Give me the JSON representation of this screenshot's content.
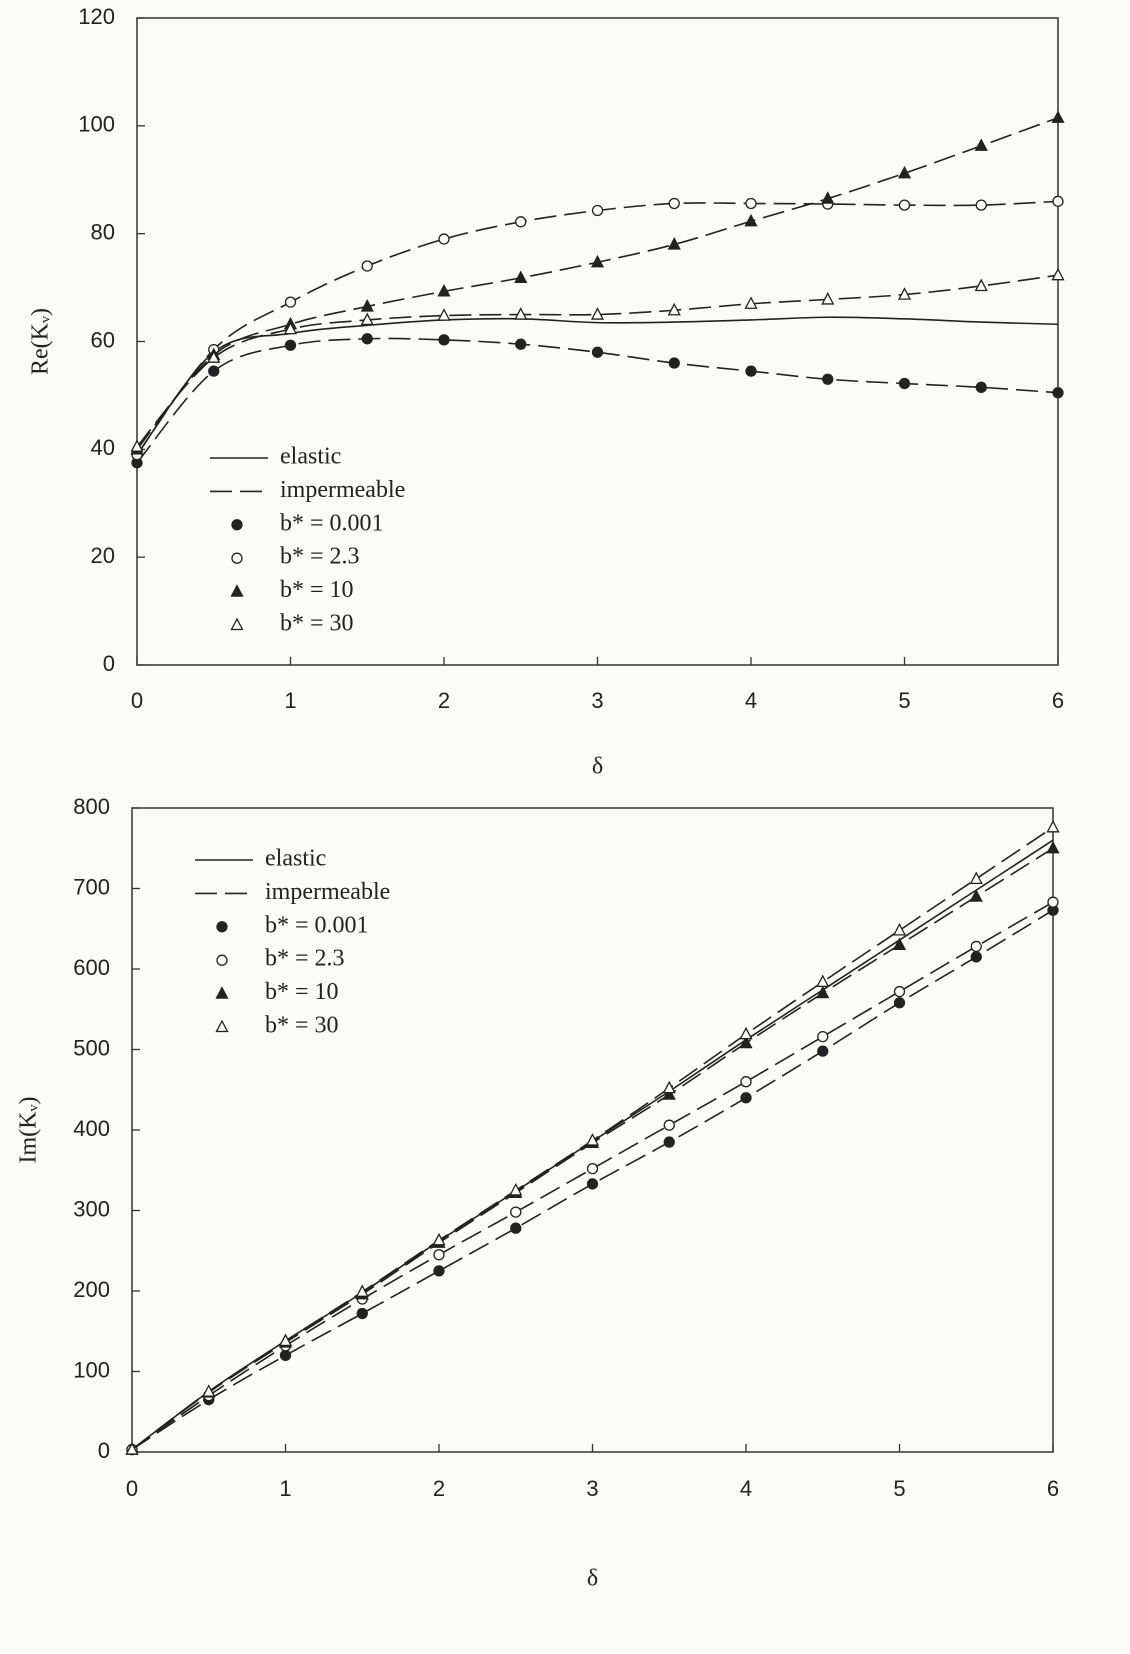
{
  "chart_data": [
    {
      "type": "line",
      "x_label": "δ",
      "y_label": "Re(Kᵥ)",
      "x": [
        0,
        0.5,
        1,
        1.5,
        2,
        2.5,
        3,
        3.5,
        4,
        4.5,
        5,
        5.5,
        6
      ],
      "xlim": [
        0,
        6
      ],
      "xticks": [
        0,
        1,
        2,
        3,
        4,
        5,
        6
      ],
      "ylim": [
        0,
        120
      ],
      "yticks": [
        0,
        20,
        40,
        60,
        80,
        100,
        120
      ],
      "dashed_label": "impermeable",
      "series": [
        {
          "name": "elastic",
          "color": "#222222",
          "dash": "solid",
          "marker": "none",
          "values": [
            39,
            58,
            61.5,
            63,
            64,
            64.2,
            63.5,
            63.6,
            64,
            64.5,
            64.2,
            63.6,
            63.2
          ]
        },
        {
          "name": "b* = 0.001",
          "color": "#222222",
          "dash": "dashed",
          "marker": "filled-circle",
          "values": [
            37.5,
            54.5,
            59.3,
            60.5,
            60.3,
            59.5,
            58,
            56,
            54.5,
            53,
            52.2,
            51.5,
            50.5
          ]
        },
        {
          "name": "b* = 2.3",
          "color": "#222222",
          "dash": "dashed",
          "marker": "open-circle",
          "values": [
            39,
            58.5,
            67.3,
            74,
            79,
            82.2,
            84.3,
            85.6,
            85.6,
            85.5,
            85.3,
            85.3,
            86
          ]
        },
        {
          "name": "b* = 10",
          "color": "#222222",
          "dash": "dashed",
          "marker": "filled-triangle",
          "values": [
            40,
            57.5,
            63.2,
            66.5,
            69.3,
            71.8,
            74.7,
            78,
            82.3,
            86.5,
            91.2,
            96.3,
            101.5
          ]
        },
        {
          "name": "b* = 30",
          "color": "#222222",
          "dash": "dashed",
          "marker": "open-triangle",
          "values": [
            40.5,
            57,
            62.3,
            64,
            64.8,
            65,
            65,
            65.8,
            67,
            67.8,
            68.7,
            70.3,
            72.3
          ]
        }
      ]
    },
    {
      "type": "line",
      "x_label": "δ",
      "y_label": "Im(Kᵥ)",
      "x": [
        0,
        0.5,
        1,
        1.5,
        2,
        2.5,
        3,
        3.5,
        4,
        4.5,
        5,
        5.5,
        6
      ],
      "xlim": [
        0,
        6
      ],
      "xticks": [
        0,
        1,
        2,
        3,
        4,
        5,
        6
      ],
      "ylim": [
        0,
        800
      ],
      "yticks": [
        0,
        100,
        200,
        300,
        400,
        500,
        600,
        700,
        800
      ],
      "dashed_label": "impermeable",
      "series": [
        {
          "name": "elastic",
          "color": "#222222",
          "dash": "solid",
          "marker": "none",
          "values": [
            3,
            75,
            138,
            198,
            262,
            324,
            386,
            448,
            512,
            574,
            636,
            698,
            760
          ]
        },
        {
          "name": "b* = 0.001",
          "color": "#222222",
          "dash": "dashed",
          "marker": "filled-circle",
          "values": [
            3,
            65,
            120,
            172,
            225,
            278,
            333,
            385,
            440,
            498,
            558,
            615,
            673
          ]
        },
        {
          "name": "b* = 2.3",
          "color": "#222222",
          "dash": "dashed",
          "marker": "open-circle",
          "values": [
            3,
            70,
            132,
            190,
            245,
            298,
            352,
            406,
            460,
            516,
            572,
            628,
            683
          ]
        },
        {
          "name": "b* = 10",
          "color": "#222222",
          "dash": "dashed",
          "marker": "filled-triangle",
          "values": [
            3,
            74,
            136,
            196,
            260,
            322,
            384,
            444,
            508,
            570,
            630,
            690,
            750
          ]
        },
        {
          "name": "b* = 30",
          "color": "#222222",
          "dash": "dashed",
          "marker": "open-triangle",
          "values": [
            3,
            75,
            138,
            199,
            263,
            325,
            387,
            452,
            519,
            584,
            648,
            712,
            776
          ]
        }
      ]
    }
  ]
}
